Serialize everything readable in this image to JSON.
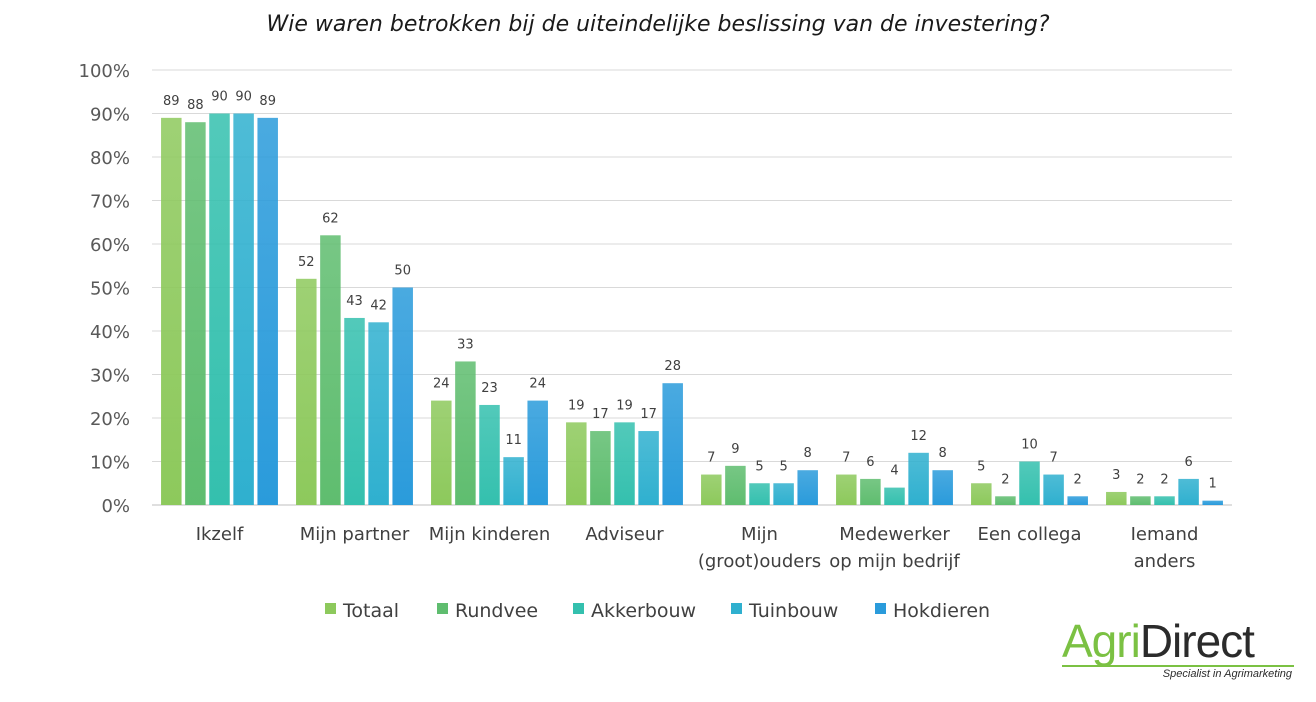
{
  "chart_data": {
    "type": "bar",
    "title": "Wie waren betrokken bij de uiteindelijke beslissing van de investering?",
    "categories": [
      [
        "Ikzelf"
      ],
      [
        "Mijn partner"
      ],
      [
        "Mijn kinderen"
      ],
      [
        "Adviseur"
      ],
      [
        "Mijn",
        "(groot)ouders"
      ],
      [
        "Medewerker",
        "op mijn bedrijf"
      ],
      [
        "Een collega"
      ],
      [
        "Iemand",
        "anders"
      ]
    ],
    "series": [
      {
        "name": "Totaal",
        "color": "#8dc95c",
        "values": [
          89,
          52,
          24,
          19,
          7,
          7,
          5,
          3
        ]
      },
      {
        "name": "Rundvee",
        "color": "#5fbd6f",
        "values": [
          88,
          62,
          33,
          17,
          9,
          6,
          2,
          2
        ]
      },
      {
        "name": "Akkerbouw",
        "color": "#34c0ae",
        "values": [
          90,
          43,
          23,
          19,
          5,
          4,
          10,
          2
        ]
      },
      {
        "name": "Tuinbouw",
        "color": "#2fb0cf",
        "values": [
          90,
          42,
          11,
          17,
          5,
          12,
          7,
          6
        ]
      },
      {
        "name": "Hokdieren",
        "color": "#2a9bdb",
        "values": [
          89,
          50,
          24,
          28,
          8,
          8,
          2,
          1
        ]
      }
    ],
    "y_ticks": [
      "0%",
      "10%",
      "20%",
      "30%",
      "40%",
      "50%",
      "60%",
      "70%",
      "80%",
      "90%",
      "100%"
    ],
    "ylim": [
      0,
      100
    ],
    "grid": true,
    "legend_position": "bottom"
  },
  "logo": {
    "agri": "Agri",
    "direct": "Direct",
    "tagline": "Specialist in Agrimarketing"
  }
}
